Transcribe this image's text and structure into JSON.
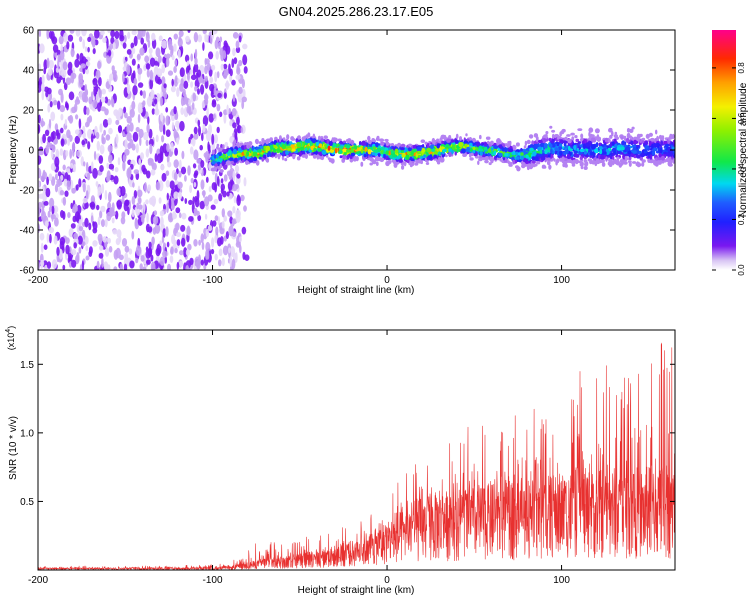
{
  "title": "GN04.2025.286.23.17.E05",
  "chart_data": [
    {
      "type": "heatmap",
      "name": "spectrogram",
      "xlabel": "Height of straight line (km)",
      "ylabel": "Frequency (Hz)",
      "xlim": [
        -200,
        165
      ],
      "ylim": [
        -60,
        60
      ],
      "x_ticks": [
        -200,
        -100,
        0,
        100
      ],
      "y_ticks": [
        -60,
        -40,
        -20,
        0,
        20,
        40,
        60
      ],
      "noise_region_x": [
        -200,
        -85
      ],
      "signal_start_x": -100,
      "ridge": {
        "x": [
          -100,
          -92,
          -85,
          -75,
          -65,
          -55,
          -45,
          -35,
          -25,
          -15,
          -5,
          5,
          15,
          25,
          35,
          45,
          55,
          65,
          75,
          85,
          95,
          105,
          115,
          125,
          135,
          145,
          155,
          165
        ],
        "freq": [
          -5,
          -3,
          -2,
          -2,
          1,
          1,
          2,
          1,
          0,
          0,
          0,
          -2,
          -2,
          -1,
          1,
          2,
          0,
          -1,
          -3,
          -1,
          1,
          0,
          0,
          0,
          1,
          0,
          0,
          0
        ],
        "peak_amplitude": [
          0.55,
          0.6,
          0.75,
          0.8,
          0.7,
          0.8,
          0.85,
          0.8,
          0.9,
          0.75,
          0.7,
          0.75,
          0.8,
          0.75,
          0.7,
          0.65,
          0.55,
          0.55,
          0.5,
          0.45,
          0.4,
          0.35,
          0.35,
          0.35,
          0.35,
          0.3,
          0.3,
          0.3
        ]
      },
      "colorbar": {
        "label": "Normalized spectral amplitude",
        "range": [
          0.0,
          0.95
        ],
        "ticks": [
          0.0,
          0.2,
          0.4,
          0.6,
          0.8
        ],
        "tick_labels": [
          "0.0",
          "0.2",
          "0.4",
          "0.6",
          "0.8"
        ]
      }
    },
    {
      "type": "line",
      "name": "snr",
      "xlabel": "Height of straight line (km)",
      "ylabel": "SNR (10 * v/v)",
      "scale_label": "(x10",
      "scale_exponent": "4",
      "xlim": [
        -200,
        165
      ],
      "ylim": [
        0,
        1.75
      ],
      "x_ticks": [
        -200,
        -100,
        0,
        100
      ],
      "y_ticks": [
        0.5,
        1.0,
        1.5
      ],
      "y_tick_labels": [
        "0.5",
        "1.0",
        "1.5"
      ],
      "color": "#e8302f",
      "envelope": {
        "x": [
          -200,
          -150,
          -100,
          -90,
          -80,
          -70,
          -60,
          -50,
          -40,
          -30,
          -20,
          -10,
          0,
          10,
          20,
          30,
          40,
          50,
          60,
          70,
          80,
          90,
          100,
          110,
          120,
          130,
          140,
          150,
          160,
          165
        ],
        "base": [
          0.01,
          0.01,
          0.01,
          0.015,
          0.03,
          0.05,
          0.05,
          0.07,
          0.08,
          0.1,
          0.12,
          0.15,
          0.2,
          0.25,
          0.3,
          0.32,
          0.33,
          0.35,
          0.35,
          0.36,
          0.38,
          0.38,
          0.4,
          0.42,
          0.4,
          0.42,
          0.42,
          0.42,
          0.42,
          0.42
        ],
        "max": [
          0.03,
          0.03,
          0.04,
          0.05,
          0.15,
          0.25,
          0.2,
          0.25,
          0.25,
          0.3,
          0.35,
          0.4,
          0.55,
          0.7,
          0.85,
          0.95,
          1.0,
          1.1,
          1.0,
          1.1,
          1.2,
          1.15,
          1.25,
          1.45,
          1.5,
          1.55,
          1.45,
          1.5,
          1.75,
          1.6
        ]
      }
    }
  ]
}
